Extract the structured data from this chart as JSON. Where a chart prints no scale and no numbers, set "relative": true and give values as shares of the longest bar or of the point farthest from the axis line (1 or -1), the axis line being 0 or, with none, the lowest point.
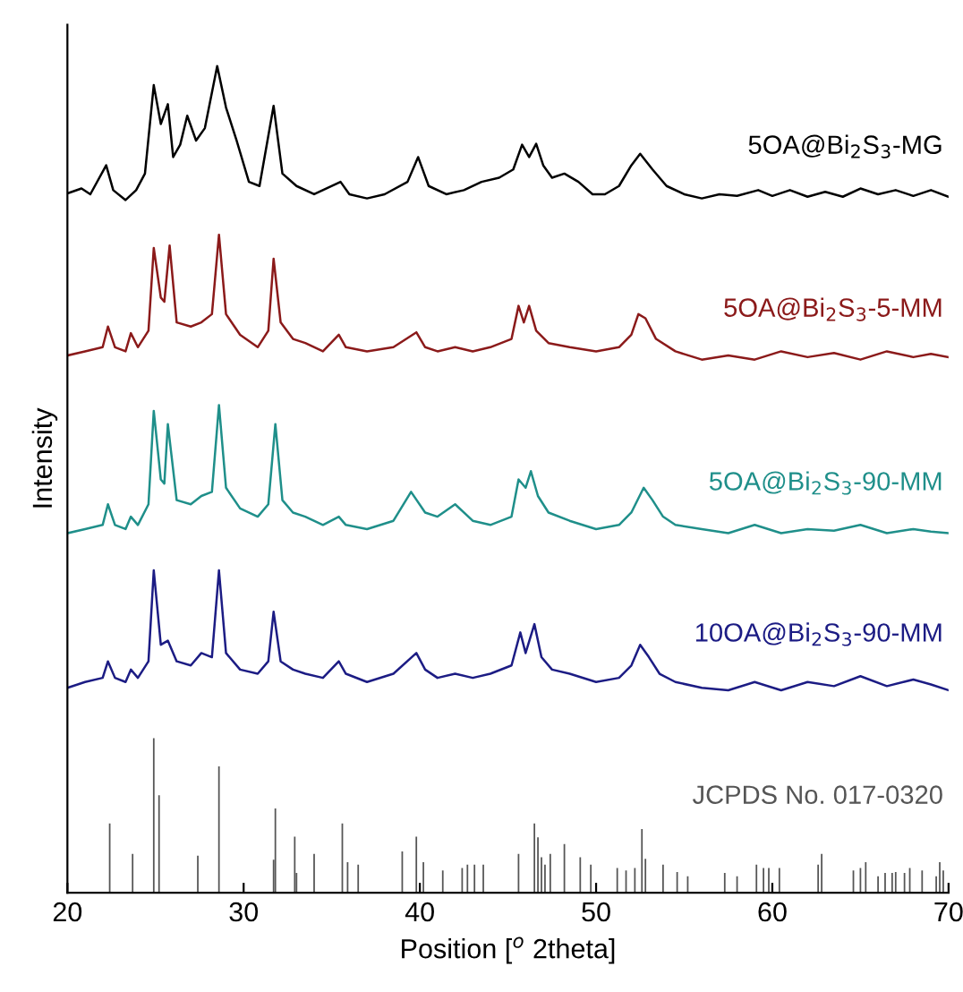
{
  "chart_data": {
    "type": "line",
    "relative": true,
    "xlabel": "Position [$^{o}$ 2theta]",
    "ylabel": "Intensity",
    "xlim": [
      20,
      70
    ],
    "xticks": [
      20,
      30,
      40,
      50,
      60,
      70
    ],
    "grid": false,
    "legend": false,
    "tick_labels": "x",
    "series": [
      {
        "name": "5OA@Bi$_{2}$S$_{3}$-MG",
        "color": "#000000",
        "x": [
          20,
          20.8,
          21.3,
          22.2,
          22.6,
          23.3,
          23.9,
          24.4,
          24.9,
          25.3,
          25.7,
          26.0,
          26.4,
          26.8,
          27.3,
          27.8,
          28.5,
          29.0,
          29.6,
          30.3,
          30.9,
          31.7,
          32.2,
          33,
          34,
          35.5,
          36,
          37,
          38,
          39.3,
          39.9,
          40.5,
          41.5,
          42.5,
          43.5,
          44.5,
          45.3,
          45.8,
          46.2,
          46.6,
          47.0,
          47.5,
          48.2,
          49,
          49.8,
          50.5,
          51.3,
          52.0,
          52.5,
          53.2,
          54,
          55,
          56,
          57,
          58,
          59.2,
          60,
          61,
          62,
          63,
          64,
          65,
          66,
          67,
          68,
          69,
          70
        ],
        "values": [
          0.846,
          0.852,
          0.845,
          0.88,
          0.85,
          0.838,
          0.85,
          0.87,
          0.977,
          0.93,
          0.954,
          0.89,
          0.905,
          0.94,
          0.91,
          0.925,
          1.0,
          0.95,
          0.91,
          0.86,
          0.855,
          0.952,
          0.87,
          0.855,
          0.845,
          0.86,
          0.845,
          0.84,
          0.845,
          0.86,
          0.89,
          0.855,
          0.845,
          0.85,
          0.86,
          0.865,
          0.875,
          0.905,
          0.89,
          0.906,
          0.88,
          0.865,
          0.87,
          0.86,
          0.845,
          0.845,
          0.855,
          0.88,
          0.894,
          0.875,
          0.855,
          0.845,
          0.84,
          0.845,
          0.843,
          0.85,
          0.843,
          0.85,
          0.842,
          0.848,
          0.842,
          0.852,
          0.845,
          0.85,
          0.843,
          0.85,
          0.842
        ]
      },
      {
        "name": "5OA@Bi$_{2}$S$_{3}$-5-MM",
        "color": "#8b1a1a",
        "x": [
          20,
          21,
          22.0,
          22.3,
          22.7,
          23.3,
          23.6,
          24.0,
          24.6,
          24.9,
          25.3,
          25.5,
          25.8,
          26.2,
          27.0,
          27.6,
          28.2,
          28.6,
          29.0,
          29.8,
          30.8,
          31.4,
          31.7,
          32.1,
          32.8,
          33.5,
          34.5,
          35.4,
          35.8,
          37,
          38.5,
          39.8,
          40.3,
          41,
          42,
          43,
          44,
          45.2,
          45.6,
          45.9,
          46.2,
          46.6,
          47.3,
          48.5,
          50,
          51.3,
          52.0,
          52.4,
          52.8,
          53.4,
          54.5,
          56,
          57.5,
          59,
          60.5,
          62,
          63.5,
          65,
          66.5,
          68,
          69,
          70
        ],
        "values": [
          0.65,
          0.655,
          0.66,
          0.685,
          0.66,
          0.655,
          0.677,
          0.66,
          0.68,
          0.78,
          0.72,
          0.715,
          0.783,
          0.69,
          0.685,
          0.69,
          0.7,
          0.796,
          0.7,
          0.675,
          0.66,
          0.68,
          0.767,
          0.69,
          0.67,
          0.665,
          0.655,
          0.675,
          0.66,
          0.655,
          0.66,
          0.678,
          0.66,
          0.655,
          0.66,
          0.655,
          0.66,
          0.67,
          0.71,
          0.69,
          0.71,
          0.68,
          0.665,
          0.66,
          0.655,
          0.66,
          0.675,
          0.7,
          0.695,
          0.67,
          0.655,
          0.645,
          0.65,
          0.645,
          0.655,
          0.648,
          0.653,
          0.645,
          0.655,
          0.648,
          0.652,
          0.648
        ]
      },
      {
        "name": "5OA@Bi$_{2}$S$_{3}$-90-MM",
        "color": "#1f8f8a",
        "x": [
          20,
          21,
          22.0,
          22.3,
          22.7,
          23.3,
          23.6,
          24.0,
          24.6,
          24.9,
          25.3,
          25.5,
          25.7,
          26.2,
          27.0,
          27.6,
          28.2,
          28.6,
          29.0,
          29.8,
          30.8,
          31.4,
          31.8,
          32.2,
          32.8,
          33.5,
          34.5,
          35.4,
          35.8,
          37,
          38.5,
          39.5,
          40.3,
          41,
          42,
          43,
          44,
          45.2,
          45.6,
          46.0,
          46.3,
          46.7,
          47.3,
          48.5,
          50,
          51.3,
          52.0,
          52.7,
          53.2,
          53.8,
          54.5,
          56,
          57.5,
          59,
          60.5,
          62,
          63.5,
          65,
          66.5,
          68,
          69,
          70
        ],
        "values": [
          0.435,
          0.44,
          0.445,
          0.47,
          0.445,
          0.44,
          0.455,
          0.445,
          0.47,
          0.583,
          0.5,
          0.495,
          0.567,
          0.475,
          0.47,
          0.48,
          0.485,
          0.59,
          0.49,
          0.465,
          0.455,
          0.47,
          0.567,
          0.475,
          0.46,
          0.455,
          0.445,
          0.455,
          0.445,
          0.44,
          0.45,
          0.485,
          0.46,
          0.455,
          0.47,
          0.45,
          0.445,
          0.455,
          0.5,
          0.49,
          0.51,
          0.48,
          0.46,
          0.45,
          0.44,
          0.445,
          0.46,
          0.49,
          0.475,
          0.455,
          0.445,
          0.44,
          0.435,
          0.445,
          0.435,
          0.44,
          0.438,
          0.445,
          0.435,
          0.44,
          0.437,
          0.435
        ]
      },
      {
        "name": "10OA@Bi$_{2}$S$_{3}$-90-MM",
        "color": "#1c1c84",
        "x": [
          20,
          21,
          22.0,
          22.3,
          22.7,
          23.3,
          23.6,
          24.0,
          24.6,
          24.9,
          25.3,
          25.7,
          26.2,
          27.0,
          27.6,
          28.2,
          28.6,
          29.0,
          29.8,
          30.8,
          31.4,
          31.7,
          32.1,
          32.8,
          33.5,
          34.5,
          35.4,
          35.8,
          37,
          38.5,
          39.8,
          40.3,
          41,
          42,
          43,
          44,
          45.2,
          45.7,
          46.0,
          46.5,
          46.9,
          47.5,
          48.5,
          50,
          51.3,
          52.0,
          52.5,
          53.0,
          53.6,
          54.5,
          56,
          57.5,
          59,
          60.5,
          62,
          63.5,
          65,
          66.5,
          68,
          69,
          70
        ],
        "values": [
          0.248,
          0.255,
          0.26,
          0.28,
          0.26,
          0.255,
          0.27,
          0.26,
          0.28,
          0.39,
          0.3,
          0.305,
          0.28,
          0.275,
          0.29,
          0.285,
          0.39,
          0.29,
          0.27,
          0.265,
          0.28,
          0.34,
          0.28,
          0.27,
          0.265,
          0.26,
          0.28,
          0.265,
          0.255,
          0.265,
          0.29,
          0.27,
          0.26,
          0.265,
          0.26,
          0.265,
          0.275,
          0.315,
          0.29,
          0.325,
          0.285,
          0.27,
          0.265,
          0.255,
          0.26,
          0.275,
          0.3,
          0.285,
          0.265,
          0.255,
          0.248,
          0.245,
          0.255,
          0.245,
          0.255,
          0.25,
          0.262,
          0.25,
          0.258,
          0.252,
          0.245
        ]
      },
      {
        "name": "JCPDS No. 017-0320",
        "type": "bar",
        "color": "#555555",
        "x": [
          22.4,
          23.7,
          24.9,
          25.2,
          27.4,
          28.6,
          31.7,
          31.8,
          32.9,
          33.0,
          34.0,
          35.6,
          35.9,
          36.5,
          39.0,
          39.8,
          40.2,
          41.3,
          42.4,
          42.7,
          43.1,
          43.6,
          45.6,
          46.5,
          46.7,
          46.9,
          47.1,
          47.4,
          48.2,
          49.1,
          49.7,
          51.2,
          51.7,
          52.2,
          52.6,
          52.8,
          53.8,
          54.6,
          55.2,
          57.3,
          58.0,
          59.1,
          59.5,
          59.8,
          60.4,
          62.6,
          62.8,
          64.6,
          65.0,
          65.3,
          66.0,
          66.4,
          66.8,
          67.0,
          67.5,
          67.8,
          68.5,
          69.3,
          69.5,
          69.7
        ],
        "values": [
          0.084,
          0.047,
          0.187,
          0.118,
          0.045,
          0.153,
          0.04,
          0.102,
          0.068,
          0.024,
          0.047,
          0.084,
          0.037,
          0.034,
          0.05,
          0.068,
          0.037,
          0.027,
          0.03,
          0.034,
          0.034,
          0.034,
          0.047,
          0.084,
          0.067,
          0.043,
          0.034,
          0.047,
          0.059,
          0.043,
          0.034,
          0.03,
          0.027,
          0.03,
          0.077,
          0.041,
          0.034,
          0.025,
          0.02,
          0.024,
          0.02,
          0.034,
          0.03,
          0.03,
          0.03,
          0.034,
          0.047,
          0.027,
          0.03,
          0.037,
          0.02,
          0.024,
          0.024,
          0.025,
          0.024,
          0.03,
          0.027,
          0.02,
          0.037,
          0.027
        ]
      }
    ]
  }
}
